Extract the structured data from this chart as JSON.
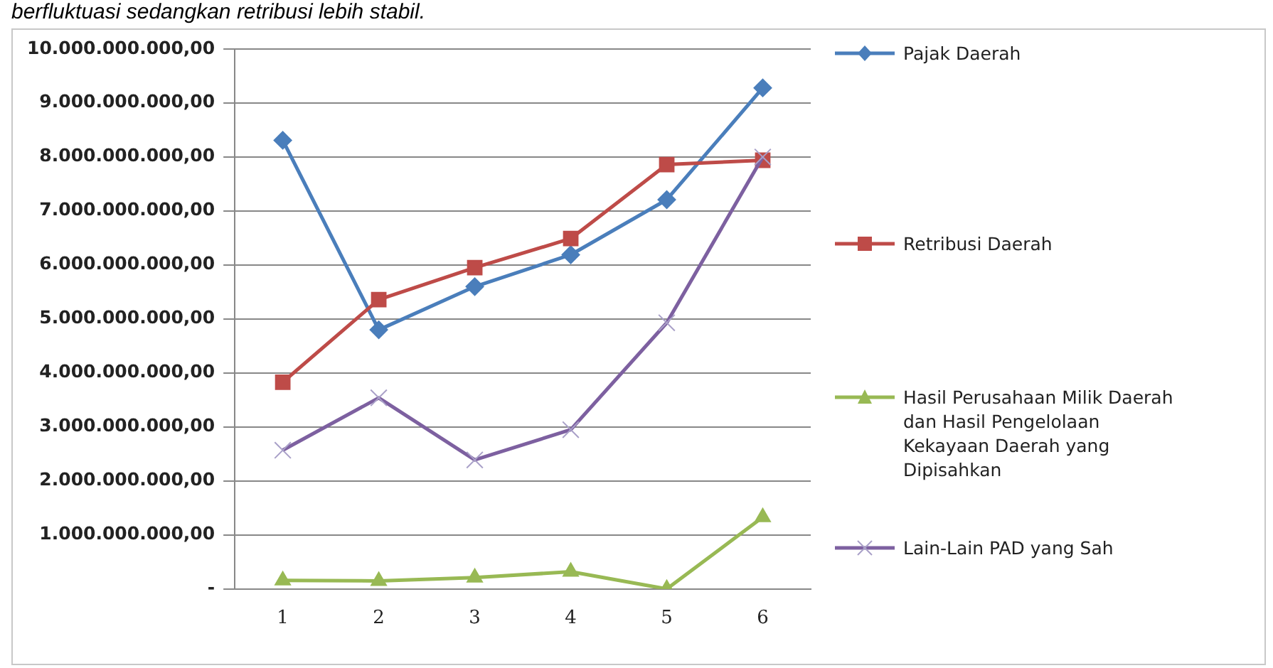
{
  "chart_data": {
    "type": "line",
    "annotations": [
      "berfluktuasi sedangkan retribusi lebih stabil."
    ],
    "categories": [
      "1",
      "2",
      "3",
      "4",
      "5",
      "6"
    ],
    "series": [
      {
        "name": "Pajak Daerah",
        "color": "#4a7ebb",
        "marker": "diamond",
        "values": [
          8310000000,
          4800000000,
          5600000000,
          6190000000,
          7210000000,
          9280000000
        ]
      },
      {
        "name": "Retribusi Daerah",
        "color": "#be4b48",
        "marker": "square",
        "values": [
          3830000000,
          5360000000,
          5950000000,
          6490000000,
          7860000000,
          7940000000
        ]
      },
      {
        "name": "Hasil Perusahaan Milik Daerah dan Hasil Pengelolaan Kekayaan Daerah yang Dipisahkan",
        "color": "#98b954",
        "marker": "triangle",
        "values": [
          160000000,
          150000000,
          210000000,
          320000000,
          0,
          1330000000
        ]
      },
      {
        "name": "Lain-Lain PAD yang Sah",
        "color": "#7d60a0",
        "marker": "cross",
        "values": [
          2570000000,
          3540000000,
          2390000000,
          2950000000,
          4930000000,
          8000000000
        ]
      }
    ],
    "ylim": [
      0,
      10000000000
    ],
    "yticks": [
      {
        "value": 0,
        "label": "-"
      },
      {
        "value": 1000000000,
        "label": "1.000.000.000,00"
      },
      {
        "value": 2000000000,
        "label": "2.000.000.000,00"
      },
      {
        "value": 3000000000,
        "label": "3.000.000.000,00"
      },
      {
        "value": 4000000000,
        "label": "4.000.000.000,00"
      },
      {
        "value": 5000000000,
        "label": "5.000.000.000,00"
      },
      {
        "value": 6000000000,
        "label": "6.000.000.000,00"
      },
      {
        "value": 7000000000,
        "label": "7.000.000.000,00"
      },
      {
        "value": 8000000000,
        "label": "8.000.000.000,00"
      },
      {
        "value": 9000000000,
        "label": "9.000.000.000,00"
      },
      {
        "value": 10000000000,
        "label": "10.000.000.000,00"
      }
    ],
    "grid": "y",
    "legend": "right"
  }
}
